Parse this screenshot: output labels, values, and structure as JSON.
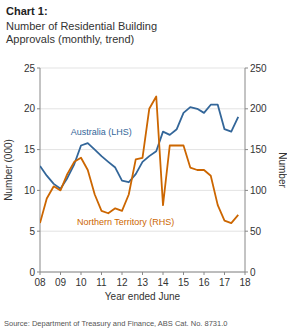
{
  "chart_data": {
    "type": "line",
    "title": "Chart 1:",
    "subtitle": "Number of Residential Building\nApprovals (monthly, trend)",
    "xlabel": "Year ended June",
    "ylabel": "Number (000)",
    "y2label": "Number",
    "source": "Source: Department of Treasury and Finance, ABS Cat. No. 8731.0",
    "x": [
      2008.0,
      2008.33,
      2008.67,
      2009.0,
      2009.33,
      2009.67,
      2010.0,
      2010.33,
      2010.67,
      2011.0,
      2011.33,
      2011.67,
      2012.0,
      2012.33,
      2012.67,
      2013.0,
      2013.33,
      2013.67,
      2014.0,
      2014.33,
      2014.67,
      2015.0,
      2015.33,
      2015.67,
      2016.0,
      2016.33,
      2016.67,
      2017.0,
      2017.33,
      2017.67
    ],
    "xlim": [
      2008,
      2018
    ],
    "xticks": [
      {
        "value": 2008,
        "label": "08"
      },
      {
        "value": 2009,
        "label": "09"
      },
      {
        "value": 2010,
        "label": "10"
      },
      {
        "value": 2011,
        "label": "11"
      },
      {
        "value": 2012,
        "label": "12"
      },
      {
        "value": 2013,
        "label": "13"
      },
      {
        "value": 2014,
        "label": "14"
      },
      {
        "value": 2015,
        "label": "15"
      },
      {
        "value": 2016,
        "label": "16"
      },
      {
        "value": 2017,
        "label": "17"
      },
      {
        "value": 2018,
        "label": "18"
      }
    ],
    "ylim": [
      0,
      25
    ],
    "yticks": [
      0,
      5,
      10,
      15,
      20,
      25
    ],
    "y2lim": [
      0,
      250
    ],
    "y2ticks": [
      0,
      50,
      100,
      150,
      200,
      250
    ],
    "grid": true,
    "series": [
      {
        "name": "Australia (LHS)",
        "color": "#336699",
        "values": [
          13.0,
          11.8,
          10.8,
          10.2,
          11.5,
          13.2,
          15.5,
          15.8,
          15.0,
          14.2,
          13.5,
          12.8,
          11.2,
          11.0,
          12.0,
          13.5,
          14.2,
          14.8,
          17.2,
          16.8,
          17.5,
          19.5,
          20.2,
          20.0,
          19.5,
          20.5,
          20.5,
          17.5,
          17.2,
          19.0
        ]
      },
      {
        "name": "Northern Territory (RHS)",
        "color": "#CC6600",
        "axis": "y2",
        "values": [
          60,
          90,
          105,
          100,
          120,
          135,
          140,
          125,
          95,
          75,
          72,
          78,
          75,
          95,
          138,
          140,
          200,
          215,
          82,
          155,
          155,
          155,
          128,
          125,
          125,
          118,
          82,
          63,
          60,
          70
        ]
      }
    ]
  }
}
